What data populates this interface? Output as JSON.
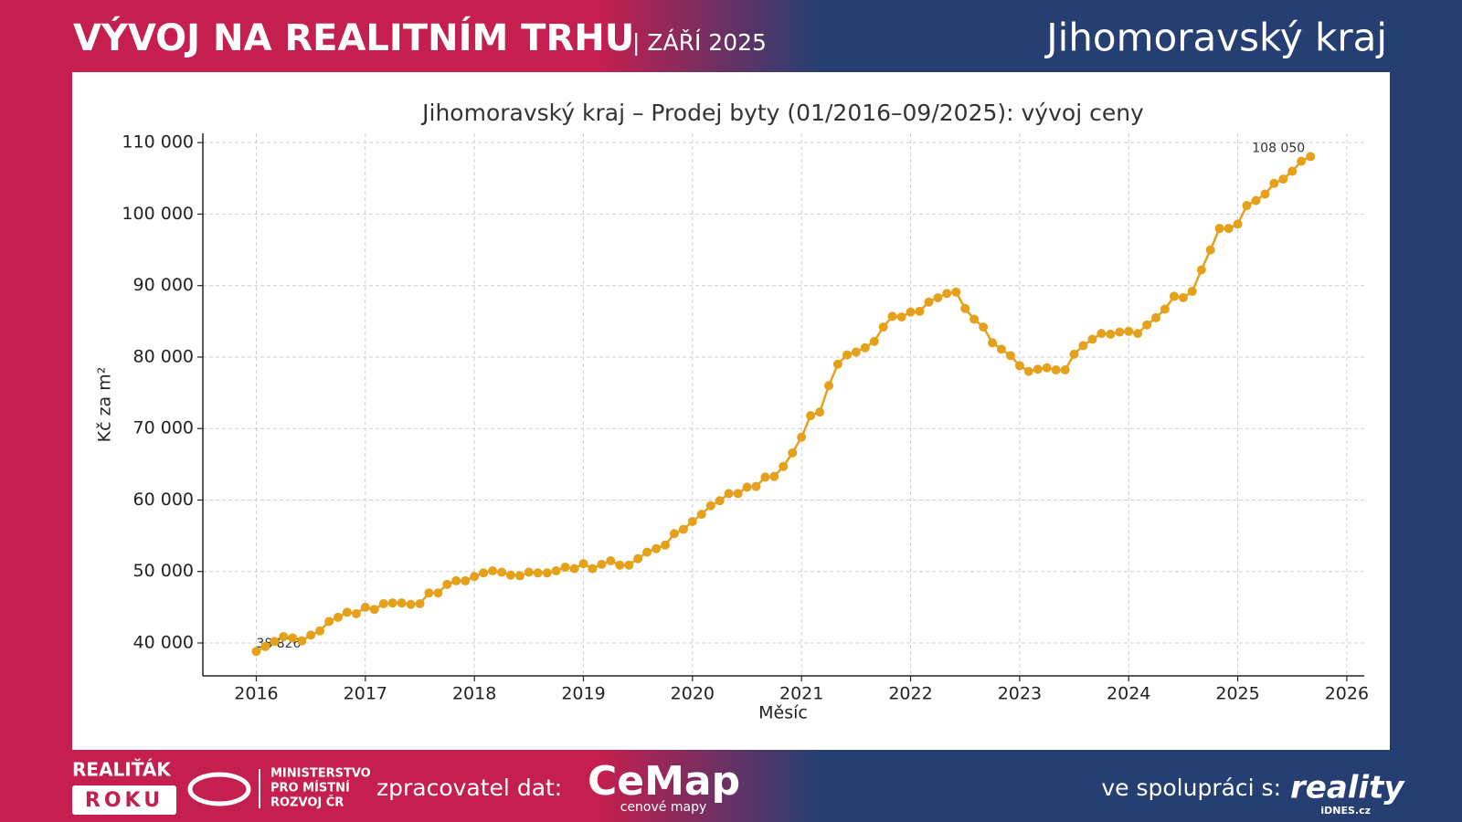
{
  "header": {
    "title": "VÝVOJ NA REALITNÍM TRHU",
    "date": "| ZÁŘÍ 2025",
    "region": "Jihomoravský kraj"
  },
  "footer": {
    "award_top": "REALIŤÁK",
    "award_bottom": "ROKU",
    "ministry": [
      "MINISTERSTVO",
      "PRO MÍSTNÍ",
      "ROZVOJ ČR"
    ],
    "processor_label": "zpracovatel dat:",
    "processor": "CeMap",
    "processor_sub": "cenové mapy",
    "partner_label": "ve spolupráci s:",
    "partner": "reality",
    "partner_sub": "iDNES.cz"
  },
  "chart_data": {
    "type": "line",
    "title": "Jihomoravský kraj – Prodej byty (01/2016–09/2025): vývoj ceny",
    "x_label": "Měsíc",
    "y_label": "Kč za m²",
    "color": "#e5a11b",
    "grid": true,
    "xlim": [
      2015.51,
      2026.16
    ],
    "ylim": [
      35400,
      111300
    ],
    "xticks": [
      2016,
      2017,
      2018,
      2019,
      2020,
      2021,
      2022,
      2023,
      2024,
      2025,
      2026
    ],
    "yticks": [
      {
        "value": 40000,
        "label": "40 000"
      },
      {
        "value": 50000,
        "label": "50 000"
      },
      {
        "value": 60000,
        "label": "60 000"
      },
      {
        "value": 70000,
        "label": "70 000"
      },
      {
        "value": 80000,
        "label": "80 000"
      },
      {
        "value": 90000,
        "label": "90 000"
      },
      {
        "value": 100000,
        "label": "100 000"
      },
      {
        "value": 110000,
        "label": "110 000"
      }
    ],
    "x": [
      2016,
      2016.083,
      2016.167,
      2016.25,
      2016.333,
      2016.417,
      2016.5,
      2016.583,
      2016.667,
      2016.75,
      2016.833,
      2016.917,
      2017,
      2017.083,
      2017.167,
      2017.25,
      2017.333,
      2017.417,
      2017.5,
      2017.583,
      2017.667,
      2017.75,
      2017.833,
      2017.917,
      2018,
      2018.083,
      2018.167,
      2018.25,
      2018.333,
      2018.417,
      2018.5,
      2018.583,
      2018.667,
      2018.75,
      2018.833,
      2018.917,
      2019,
      2019.083,
      2019.167,
      2019.25,
      2019.333,
      2019.417,
      2019.5,
      2019.583,
      2019.667,
      2019.75,
      2019.833,
      2019.917,
      2020,
      2020.083,
      2020.167,
      2020.25,
      2020.333,
      2020.417,
      2020.5,
      2020.583,
      2020.667,
      2020.75,
      2020.833,
      2020.917,
      2021,
      2021.083,
      2021.167,
      2021.25,
      2021.333,
      2021.417,
      2021.5,
      2021.583,
      2021.667,
      2021.75,
      2021.833,
      2021.917,
      2022,
      2022.083,
      2022.167,
      2022.25,
      2022.333,
      2022.417,
      2022.5,
      2022.583,
      2022.667,
      2022.75,
      2022.833,
      2022.917,
      2023,
      2023.083,
      2023.167,
      2023.25,
      2023.333,
      2023.417,
      2023.5,
      2023.583,
      2023.667,
      2023.75,
      2023.833,
      2023.917,
      2024,
      2024.083,
      2024.167,
      2024.25,
      2024.333,
      2024.417,
      2024.5,
      2024.583,
      2024.667,
      2024.75,
      2024.833,
      2024.917,
      2025,
      2025.083,
      2025.167,
      2025.25,
      2025.333,
      2025.417,
      2025.5,
      2025.583,
      2025.667
    ],
    "values": [
      38826,
      39500,
      40200,
      40900,
      40700,
      40300,
      41100,
      41700,
      43000,
      43600,
      44300,
      44100,
      45000,
      44700,
      45500,
      45600,
      45600,
      45400,
      45500,
      47000,
      47000,
      48200,
      48700,
      48700,
      49300,
      49800,
      50100,
      49900,
      49500,
      49400,
      49900,
      49800,
      49800,
      50100,
      50600,
      50400,
      51100,
      50400,
      51000,
      51500,
      50900,
      50900,
      51800,
      52700,
      53200,
      53700,
      55300,
      55900,
      57000,
      58000,
      59200,
      59900,
      60900,
      60900,
      61800,
      61900,
      63200,
      63300,
      64700,
      66600,
      68800,
      71800,
      72300,
      76000,
      79000,
      80300,
      80700,
      81300,
      82200,
      84200,
      85700,
      85600,
      86300,
      86400,
      87700,
      88300,
      88900,
      89100,
      86800,
      85300,
      84200,
      82000,
      81100,
      80200,
      78800,
      78000,
      78300,
      78500,
      78200,
      78200,
      80400,
      81600,
      82500,
      83300,
      83200,
      83500,
      83600,
      83300,
      84500,
      85500,
      86700,
      88500,
      88300,
      89200,
      92200,
      95000,
      98000,
      98000,
      98600,
      101200,
      101900,
      102800,
      104300,
      104900,
      106000,
      107400,
      108050
    ],
    "value_labels": [
      "38 826",
      null,
      null,
      null,
      null,
      null,
      null,
      null,
      null,
      null,
      null,
      null,
      null,
      null,
      null,
      null,
      null,
      null,
      null,
      null,
      null,
      null,
      null,
      null,
      null,
      null,
      null,
      null,
      null,
      null,
      null,
      null,
      null,
      null,
      null,
      null,
      null,
      null,
      null,
      null,
      null,
      null,
      null,
      null,
      null,
      null,
      null,
      null,
      null,
      null,
      null,
      null,
      null,
      null,
      null,
      null,
      null,
      null,
      null,
      null,
      null,
      null,
      null,
      null,
      null,
      null,
      null,
      null,
      null,
      null,
      null,
      null,
      null,
      null,
      null,
      null,
      null,
      null,
      null,
      null,
      null,
      null,
      null,
      null,
      null,
      null,
      null,
      null,
      null,
      null,
      null,
      null,
      null,
      null,
      null,
      null,
      null,
      null,
      null,
      null,
      null,
      null,
      null,
      null,
      null,
      null,
      null,
      null,
      null,
      null,
      null,
      null,
      null,
      null,
      null,
      null,
      "108 050"
    ]
  }
}
